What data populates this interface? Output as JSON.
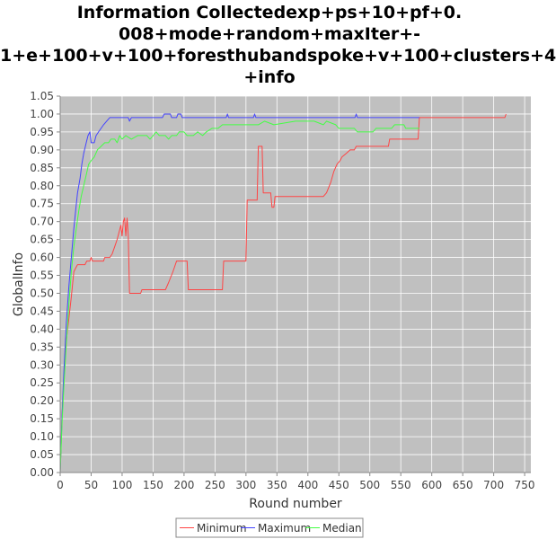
{
  "chart_data": {
    "type": "line",
    "title": "Information Collectedexp+ps+10+pf+0.\n008+mode+random+maxIter+-\n1+e+100+v+100+foresthubandspoke+v+100+clusters+4\n+info",
    "xlabel": "Round number",
    "ylabel": "GlobalInfo",
    "xlim": [
      0,
      760
    ],
    "ylim": [
      0.0,
      1.05
    ],
    "xticks": [
      0,
      50,
      100,
      150,
      200,
      250,
      300,
      350,
      400,
      450,
      500,
      550,
      600,
      650,
      700,
      750
    ],
    "yticks": [
      "0.00",
      "0.05",
      "0.10",
      "0.15",
      "0.20",
      "0.25",
      "0.30",
      "0.35",
      "0.40",
      "0.45",
      "0.50",
      "0.55",
      "0.60",
      "0.65",
      "0.70",
      "0.75",
      "0.80",
      "0.85",
      "0.90",
      "0.95",
      "1.00",
      "1.05"
    ],
    "grid": true,
    "legend_position": "bottom",
    "colors": {
      "plot_background": "#c0c0c0",
      "grid": "#ffffff"
    },
    "series": [
      {
        "name": "Minimum",
        "color": "#ff4444",
        "points": [
          [
            0,
            0.0
          ],
          [
            3,
            0.16
          ],
          [
            6,
            0.26
          ],
          [
            10,
            0.37
          ],
          [
            14,
            0.43
          ],
          [
            18,
            0.49
          ],
          [
            22,
            0.56
          ],
          [
            25,
            0.57
          ],
          [
            28,
            0.58
          ],
          [
            40,
            0.58
          ],
          [
            43,
            0.59
          ],
          [
            48,
            0.59
          ],
          [
            50,
            0.6
          ],
          [
            52,
            0.59
          ],
          [
            70,
            0.59
          ],
          [
            72,
            0.6
          ],
          [
            80,
            0.6
          ],
          [
            84,
            0.61
          ],
          [
            88,
            0.63
          ],
          [
            92,
            0.65
          ],
          [
            95,
            0.67
          ],
          [
            98,
            0.69
          ],
          [
            100,
            0.66
          ],
          [
            102,
            0.7
          ],
          [
            104,
            0.71
          ],
          [
            106,
            0.66
          ],
          [
            108,
            0.71
          ],
          [
            110,
            0.66
          ],
          [
            112,
            0.5
          ],
          [
            130,
            0.5
          ],
          [
            132,
            0.51
          ],
          [
            170,
            0.51
          ],
          [
            175,
            0.53
          ],
          [
            182,
            0.56
          ],
          [
            188,
            0.59
          ],
          [
            205,
            0.59
          ],
          [
            207,
            0.51
          ],
          [
            262,
            0.51
          ],
          [
            264,
            0.59
          ],
          [
            300,
            0.59
          ],
          [
            302,
            0.76
          ],
          [
            318,
            0.76
          ],
          [
            320,
            0.91
          ],
          [
            326,
            0.91
          ],
          [
            328,
            0.78
          ],
          [
            340,
            0.78
          ],
          [
            342,
            0.74
          ],
          [
            345,
            0.74
          ],
          [
            347,
            0.77
          ],
          [
            425,
            0.77
          ],
          [
            430,
            0.78
          ],
          [
            437,
            0.81
          ],
          [
            442,
            0.84
          ],
          [
            447,
            0.86
          ],
          [
            452,
            0.87
          ],
          [
            455,
            0.88
          ],
          [
            462,
            0.89
          ],
          [
            468,
            0.9
          ],
          [
            475,
            0.9
          ],
          [
            478,
            0.91
          ],
          [
            530,
            0.91
          ],
          [
            532,
            0.93
          ],
          [
            578,
            0.93
          ],
          [
            580,
            0.99
          ],
          [
            718,
            0.99
          ],
          [
            720,
            1.0
          ]
        ]
      },
      {
        "name": "Maximum",
        "color": "#4444ff",
        "points": [
          [
            0,
            0.0
          ],
          [
            3,
            0.16
          ],
          [
            6,
            0.28
          ],
          [
            10,
            0.42
          ],
          [
            14,
            0.52
          ],
          [
            18,
            0.6
          ],
          [
            22,
            0.68
          ],
          [
            25,
            0.73
          ],
          [
            28,
            0.78
          ],
          [
            32,
            0.82
          ],
          [
            35,
            0.86
          ],
          [
            38,
            0.89
          ],
          [
            42,
            0.92
          ],
          [
            45,
            0.94
          ],
          [
            48,
            0.95
          ],
          [
            50,
            0.92
          ],
          [
            55,
            0.92
          ],
          [
            58,
            0.94
          ],
          [
            62,
            0.95
          ],
          [
            66,
            0.96
          ],
          [
            70,
            0.97
          ],
          [
            75,
            0.98
          ],
          [
            80,
            0.99
          ],
          [
            110,
            0.99
          ],
          [
            112,
            0.98
          ],
          [
            115,
            0.99
          ],
          [
            165,
            0.99
          ],
          [
            168,
            1.0
          ],
          [
            178,
            1.0
          ],
          [
            180,
            0.99
          ],
          [
            188,
            0.99
          ],
          [
            190,
            1.0
          ],
          [
            195,
            1.0
          ],
          [
            197,
            0.99
          ],
          [
            268,
            0.99
          ],
          [
            270,
            1.0
          ],
          [
            272,
            0.99
          ],
          [
            312,
            0.99
          ],
          [
            314,
            1.0
          ],
          [
            316,
            0.99
          ],
          [
            476,
            0.99
          ],
          [
            478,
            1.0
          ],
          [
            480,
            0.99
          ],
          [
            580,
            0.99
          ]
        ]
      },
      {
        "name": "Median",
        "color": "#44ff44",
        "points": [
          [
            0,
            0.0
          ],
          [
            3,
            0.14
          ],
          [
            6,
            0.24
          ],
          [
            10,
            0.36
          ],
          [
            14,
            0.47
          ],
          [
            18,
            0.56
          ],
          [
            22,
            0.63
          ],
          [
            26,
            0.68
          ],
          [
            30,
            0.73
          ],
          [
            34,
            0.77
          ],
          [
            38,
            0.8
          ],
          [
            42,
            0.83
          ],
          [
            46,
            0.86
          ],
          [
            50,
            0.87
          ],
          [
            55,
            0.88
          ],
          [
            60,
            0.9
          ],
          [
            66,
            0.91
          ],
          [
            72,
            0.92
          ],
          [
            78,
            0.92
          ],
          [
            82,
            0.93
          ],
          [
            88,
            0.93
          ],
          [
            92,
            0.92
          ],
          [
            96,
            0.94
          ],
          [
            100,
            0.93
          ],
          [
            106,
            0.94
          ],
          [
            115,
            0.93
          ],
          [
            125,
            0.94
          ],
          [
            140,
            0.94
          ],
          [
            145,
            0.93
          ],
          [
            155,
            0.95
          ],
          [
            160,
            0.94
          ],
          [
            170,
            0.94
          ],
          [
            175,
            0.93
          ],
          [
            180,
            0.94
          ],
          [
            188,
            0.94
          ],
          [
            192,
            0.95
          ],
          [
            200,
            0.95
          ],
          [
            205,
            0.94
          ],
          [
            215,
            0.94
          ],
          [
            222,
            0.95
          ],
          [
            230,
            0.94
          ],
          [
            236,
            0.95
          ],
          [
            245,
            0.96
          ],
          [
            255,
            0.96
          ],
          [
            262,
            0.97
          ],
          [
            300,
            0.97
          ],
          [
            320,
            0.97
          ],
          [
            330,
            0.98
          ],
          [
            345,
            0.97
          ],
          [
            380,
            0.98
          ],
          [
            410,
            0.98
          ],
          [
            425,
            0.97
          ],
          [
            430,
            0.98
          ],
          [
            445,
            0.97
          ],
          [
            450,
            0.96
          ],
          [
            475,
            0.96
          ],
          [
            480,
            0.95
          ],
          [
            505,
            0.95
          ],
          [
            510,
            0.96
          ],
          [
            535,
            0.96
          ],
          [
            540,
            0.97
          ],
          [
            555,
            0.97
          ],
          [
            558,
            0.96
          ],
          [
            580,
            0.96
          ]
        ]
      }
    ]
  }
}
